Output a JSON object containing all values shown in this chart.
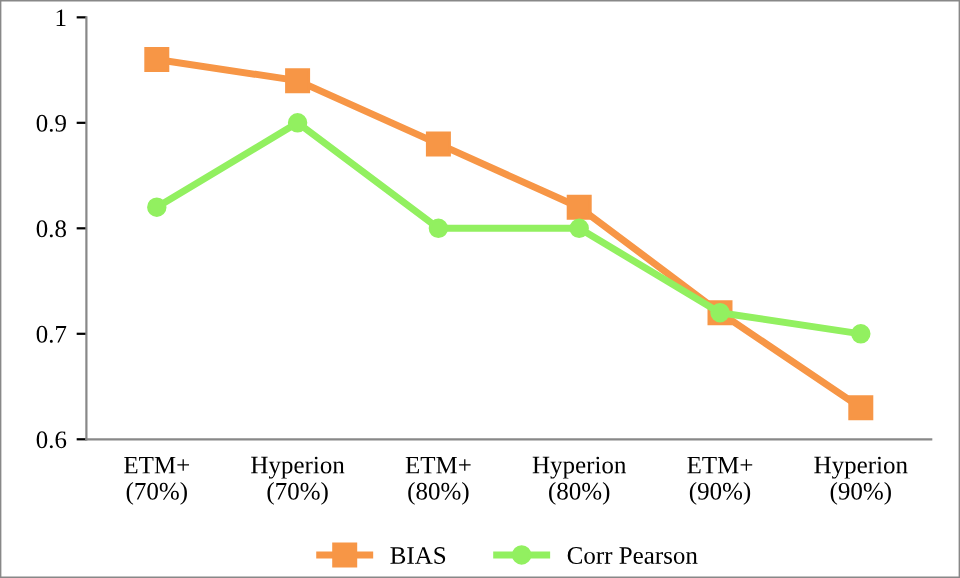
{
  "chart_data": {
    "type": "line",
    "categories": [
      "ETM+\n(70%)",
      "Hyperion\n(70%)",
      "ETM+\n(80%)",
      "Hyperion\n(80%)",
      "ETM+\n(90%)",
      "Hyperion\n(90%)"
    ],
    "series": [
      {
        "name": "BIAS",
        "color": "#f79646",
        "marker": "square",
        "values": [
          0.96,
          0.94,
          0.88,
          0.82,
          0.72,
          0.63
        ]
      },
      {
        "name": "Corr Pearson",
        "color": "#92f060",
        "marker": "circle",
        "values": [
          0.82,
          0.9,
          0.8,
          0.8,
          0.72,
          0.7
        ]
      }
    ],
    "ylim": [
      0.6,
      1
    ],
    "yticks": [
      0.6,
      0.7,
      0.8,
      0.9,
      {
        "value": 1,
        "label": "1"
      }
    ],
    "grid": false,
    "legend": "bottom",
    "line_style": "solid"
  }
}
